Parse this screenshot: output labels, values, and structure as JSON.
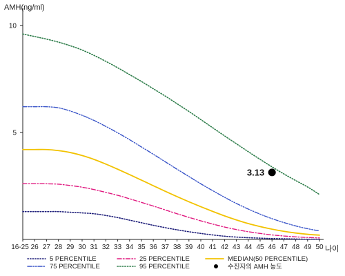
{
  "chart_data": {
    "type": "line",
    "ylabel": "AMH(ng/ml)",
    "xlabel": "나이",
    "x": [
      "16-25",
      "26",
      "27",
      "28",
      "29",
      "30",
      "31",
      "32",
      "33",
      "34",
      "35",
      "36",
      "37",
      "38",
      "39",
      "40",
      "41",
      "42",
      "43",
      "44",
      "45",
      "46",
      "47",
      "48",
      "49",
      "50"
    ],
    "y_ticks": [
      5,
      10
    ],
    "ylim": [
      0,
      10.8
    ],
    "grid": false,
    "series": [
      {
        "name": "5 PERCENTILE",
        "color": "#1f1f7a",
        "dash": "dotted",
        "values": [
          1.3,
          1.3,
          1.3,
          1.3,
          1.27,
          1.24,
          1.2,
          1.12,
          1.02,
          0.9,
          0.78,
          0.66,
          0.55,
          0.45,
          0.36,
          0.28,
          0.21,
          0.15,
          0.11,
          0.08,
          0.06,
          0.04,
          0.03,
          0.02,
          0.01,
          0.01
        ]
      },
      {
        "name": "25 PERCENTILE",
        "color": "#e0187f",
        "dash": "dashdot",
        "values": [
          2.6,
          2.6,
          2.6,
          2.58,
          2.52,
          2.44,
          2.33,
          2.2,
          2.06,
          1.9,
          1.73,
          1.56,
          1.38,
          1.2,
          1.03,
          0.87,
          0.72,
          0.58,
          0.46,
          0.36,
          0.28,
          0.21,
          0.16,
          0.12,
          0.09,
          0.07
        ]
      },
      {
        "name": "MEDIAN(50 PERCENTILE)",
        "color": "#f2c200",
        "dash": "solid",
        "values": [
          4.2,
          4.2,
          4.2,
          4.15,
          4.06,
          3.92,
          3.74,
          3.52,
          3.28,
          3.03,
          2.77,
          2.51,
          2.25,
          2.0,
          1.76,
          1.53,
          1.31,
          1.1,
          0.91,
          0.74,
          0.6,
          0.48,
          0.38,
          0.3,
          0.24,
          0.2
        ]
      },
      {
        "name": "75 PERCENTILE",
        "color": "#3a55c8",
        "dash": "dashdotdot",
        "values": [
          6.2,
          6.2,
          6.2,
          6.15,
          6.0,
          5.8,
          5.56,
          5.28,
          4.98,
          4.66,
          4.32,
          3.98,
          3.63,
          3.28,
          2.94,
          2.6,
          2.28,
          1.97,
          1.68,
          1.42,
          1.18,
          0.97,
          0.79,
          0.63,
          0.5,
          0.4
        ]
      },
      {
        "name": "95 PERCENTILE",
        "color": "#2e7d4a",
        "dash": "dotted",
        "values": [
          9.6,
          9.48,
          9.36,
          9.22,
          9.05,
          8.85,
          8.6,
          8.32,
          8.02,
          7.7,
          7.38,
          7.04,
          6.7,
          6.34,
          5.98,
          5.6,
          5.22,
          4.84,
          4.47,
          4.1,
          3.74,
          3.39,
          3.06,
          2.75,
          2.45,
          2.1
        ]
      }
    ],
    "highlight_point": {
      "x": "46",
      "y": 3.13,
      "label": "3.13",
      "legend": "수진자의 AMH 농도"
    },
    "legend_position": "bottom"
  }
}
